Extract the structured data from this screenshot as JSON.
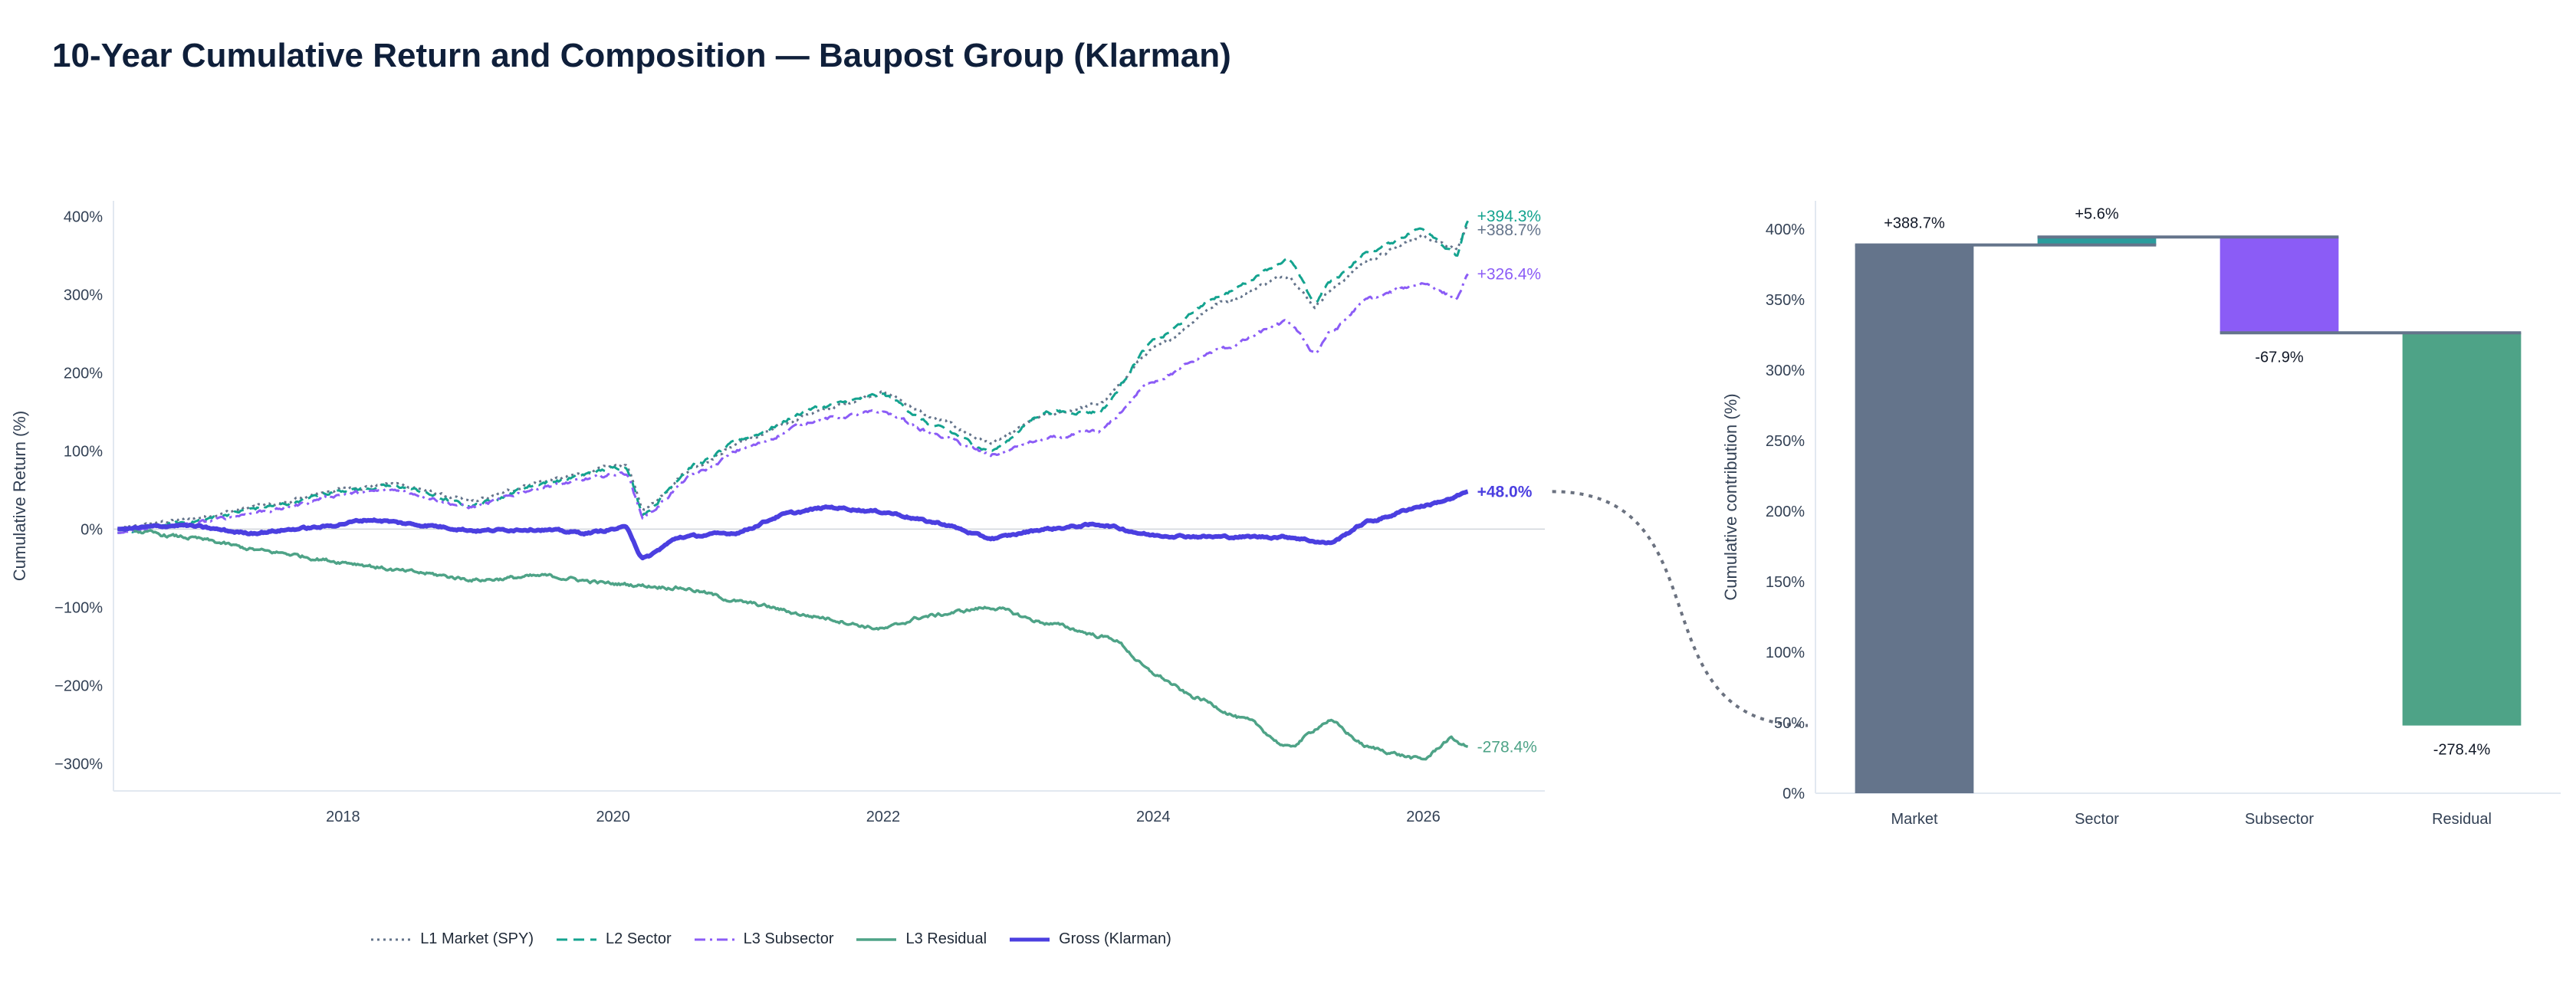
{
  "title": "10-Year Cumulative Return and Composition — Baupost Group (Klarman)",
  "colors": {
    "market": "#64748b",
    "sector": "#14a38f",
    "subsector": "#8b5cf6",
    "residual": "#4ea387",
    "gross": "#4b3fe0",
    "bar_market": "#64748b",
    "bar_sector": "#2a9d9d",
    "bar_subsector": "#8b5cf6",
    "bar_residual": "#4ea387"
  },
  "chart_data": [
    {
      "type": "line",
      "title": "",
      "xlabel": "",
      "ylabel": "Cumulative Return (%)",
      "xlim": [
        2016.3,
        2026.9
      ],
      "ylim": [
        -335,
        420
      ],
      "x_ticks": [
        "2018",
        "2020",
        "2022",
        "2024",
        "2026"
      ],
      "y_ticks": [
        "400%",
        "300%",
        "200%",
        "100%",
        "0%",
        "−100%",
        "−200%",
        "−300%"
      ],
      "grid": false,
      "legend_position": "bottom-center",
      "series": [
        {
          "name": "L1 Market (SPY)",
          "style": "dotted",
          "end_label": "+388.7%",
          "x": [
            2016.33,
            2016.8,
            2017.5,
            2018.0,
            2018.4,
            2018.95,
            2019.5,
            2020.1,
            2020.22,
            2020.6,
            2021.0,
            2021.5,
            2022.0,
            2022.4,
            2022.8,
            2023.2,
            2023.6,
            2024.0,
            2024.5,
            2025.0,
            2025.2,
            2025.3,
            2025.6,
            2026.0,
            2026.25,
            2026.33
          ],
          "y": [
            0,
            12,
            32,
            52,
            58,
            35,
            62,
            82,
            25,
            80,
            115,
            150,
            175,
            140,
            110,
            145,
            160,
            230,
            290,
            325,
            285,
            305,
            345,
            375,
            360,
            388.7
          ]
        },
        {
          "name": "L2 Sector",
          "style": "dashed",
          "end_label": "+394.3%",
          "x": [
            2016.33,
            2016.8,
            2017.5,
            2018.0,
            2018.4,
            2018.95,
            2019.5,
            2020.1,
            2020.22,
            2020.6,
            2021.0,
            2021.5,
            2022.0,
            2022.4,
            2022.8,
            2023.2,
            2023.6,
            2024.0,
            2024.5,
            2025.0,
            2025.2,
            2025.3,
            2025.6,
            2026.0,
            2026.25,
            2026.33
          ],
          "y": [
            -5,
            8,
            30,
            50,
            55,
            30,
            60,
            80,
            20,
            82,
            118,
            155,
            172,
            130,
            100,
            150,
            150,
            240,
            300,
            345,
            290,
            315,
            355,
            385,
            350,
            394.3
          ]
        },
        {
          "name": "L3 Subsector",
          "style": "dashdot",
          "end_label": "+326.4%",
          "x": [
            2016.33,
            2016.8,
            2017.5,
            2018.0,
            2018.4,
            2018.95,
            2019.5,
            2020.1,
            2020.22,
            2020.6,
            2021.0,
            2021.5,
            2022.0,
            2022.4,
            2022.8,
            2023.2,
            2023.6,
            2024.0,
            2024.5,
            2025.0,
            2025.2,
            2025.3,
            2025.6,
            2026.0,
            2026.25,
            2026.33
          ],
          "y": [
            -5,
            5,
            25,
            45,
            50,
            28,
            55,
            72,
            15,
            70,
            105,
            140,
            150,
            120,
            95,
            115,
            125,
            190,
            230,
            265,
            225,
            250,
            295,
            315,
            295,
            326.4
          ]
        },
        {
          "name": "L3 Residual",
          "style": "solid",
          "end_label": "-278.4%",
          "x": [
            2016.33,
            2016.8,
            2017.5,
            2018.0,
            2018.5,
            2019.0,
            2019.5,
            2020.0,
            2020.5,
            2021.0,
            2021.5,
            2022.0,
            2022.3,
            2022.8,
            2023.2,
            2023.7,
            2024.0,
            2024.3,
            2024.7,
            2025.0,
            2025.3,
            2025.6,
            2026.0,
            2026.2,
            2026.33
          ],
          "y": [
            0,
            -10,
            -30,
            -42,
            -55,
            -65,
            -60,
            -70,
            -75,
            -95,
            -112,
            -128,
            -112,
            -100,
            -120,
            -140,
            -185,
            -215,
            -245,
            -280,
            -245,
            -280,
            -295,
            -268,
            -278.4
          ]
        },
        {
          "name": "Gross (Klarman)",
          "style": "thick",
          "end_label": "+48.0%",
          "x": [
            2016.33,
            2016.8,
            2017.3,
            2017.8,
            2018.2,
            2018.6,
            2019.0,
            2019.4,
            2019.8,
            2020.1,
            2020.22,
            2020.5,
            2020.9,
            2021.3,
            2021.6,
            2022.0,
            2022.4,
            2022.8,
            2023.2,
            2023.6,
            2024.0,
            2024.5,
            2025.0,
            2025.3,
            2025.6,
            2026.0,
            2026.2,
            2026.33
          ],
          "y": [
            0,
            5,
            -5,
            2,
            12,
            5,
            -2,
            0,
            -5,
            2,
            -38,
            -10,
            -5,
            20,
            28,
            22,
            8,
            -12,
            0,
            6,
            -8,
            -10,
            -10,
            -18,
            10,
            30,
            38,
            48.0
          ]
        }
      ]
    },
    {
      "type": "bar",
      "title": "",
      "xlabel": "",
      "ylabel": "Cumulative contribution (%)",
      "ylim": [
        0,
        420
      ],
      "y_ticks": [
        "0%",
        "50%",
        "100%",
        "150%",
        "200%",
        "250%",
        "300%",
        "350%",
        "400%"
      ],
      "categories": [
        "Market",
        "Sector",
        "Subsector",
        "Residual"
      ],
      "values": [
        388.7,
        5.6,
        -67.9,
        -278.4
      ],
      "labels": [
        "+388.7%",
        "+5.6%",
        "-67.9%",
        "-278.4%"
      ],
      "waterfall": true
    }
  ]
}
